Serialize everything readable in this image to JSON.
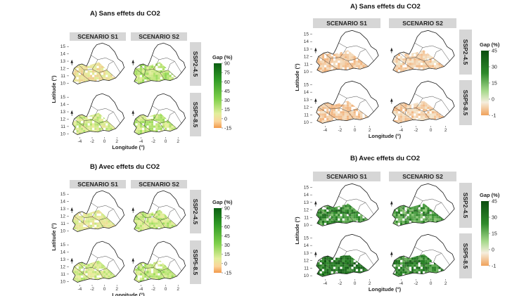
{
  "figures": [
    {
      "id": "left",
      "panels": [
        {
          "title": "A)   Sans effets du CO2",
          "scenarios": [
            "SCENARIO S1",
            "SCENARIO S2"
          ],
          "ssp": [
            "SSP2-4.5",
            "SSP5-8.5"
          ],
          "x_ticks": [
            "-4",
            "-2",
            "0",
            "2"
          ],
          "y_ticks": [
            "15",
            "14",
            "13",
            "12",
            "11",
            "10"
          ],
          "xlabel": "Longitude (°)",
          "ylabel": "Latitude (°)",
          "legend": {
            "title": "Gap (%)",
            "ticks": [
              "90",
              "75",
              "60",
              "45",
              "30",
              "15",
              "0",
              "-15"
            ]
          },
          "maps": [
            {
              "scenario": "SCENARIO S1",
              "ssp": "SSP2-4.5",
              "level": 0.2
            },
            {
              "scenario": "SCENARIO S2",
              "ssp": "SSP2-4.5",
              "level": 0.45
            },
            {
              "scenario": "SCENARIO S1",
              "ssp": "SSP5-8.5",
              "level": 0.35
            },
            {
              "scenario": "SCENARIO S2",
              "ssp": "SSP5-8.5",
              "level": 0.42
            }
          ]
        },
        {
          "title": "B)   Avec effets du CO2",
          "scenarios": [
            "SCENARIO S1",
            "SCENARIO S2"
          ],
          "ssp": [
            "SSP2-4.5",
            "SSP5-8.5"
          ],
          "x_ticks": [
            "-4",
            "-2",
            "0",
            "2"
          ],
          "y_ticks": [
            "15",
            "14",
            "13",
            "12",
            "11",
            "10"
          ],
          "xlabel": "Longitude (°)",
          "ylabel": "Latitude (°)",
          "legend": {
            "title": "Gap (%)",
            "ticks": [
              "90",
              "75",
              "60",
              "45",
              "30",
              "15",
              "0",
              "-15"
            ]
          },
          "maps": [
            {
              "scenario": "SCENARIO S1",
              "ssp": "SSP2-4.5",
              "level": 0.28
            },
            {
              "scenario": "SCENARIO S2",
              "ssp": "SSP2-4.5",
              "level": 0.4
            },
            {
              "scenario": "SCENARIO S1",
              "ssp": "SSP5-8.5",
              "level": 0.36
            },
            {
              "scenario": "SCENARIO S2",
              "ssp": "SSP5-8.5",
              "level": 0.44
            }
          ]
        }
      ]
    },
    {
      "id": "right",
      "panels": [
        {
          "title": "A)   Sans effets du CO2",
          "scenarios": [
            "SCENARIO S1",
            "SCENARIO S2"
          ],
          "ssp": [
            "SSP2-4.5",
            "SSP5-8.5"
          ],
          "x_ticks": [
            "-4",
            "-2",
            "0",
            "2"
          ],
          "y_ticks": [
            "15",
            "14",
            "13",
            "12",
            "11",
            "10"
          ],
          "xlabel": "Longitude (°)",
          "ylabel": "Latitude (°)",
          "legend": {
            "title": "Gap (%)",
            "ticks": [
              "45",
              "30",
              "15",
              "0",
              "-1"
            ]
          },
          "maps": [
            {
              "scenario": "SCENARIO S1",
              "ssp": "SSP2-4.5",
              "level": 0.08
            },
            {
              "scenario": "SCENARIO S2",
              "ssp": "SSP2-4.5",
              "level": 0.14
            },
            {
              "scenario": "SCENARIO S1",
              "ssp": "SSP5-8.5",
              "level": 0.1
            },
            {
              "scenario": "SCENARIO S2",
              "ssp": "SSP5-8.5",
              "level": 0.13
            }
          ]
        },
        {
          "title": "B)   Avec effets du CO2",
          "scenarios": [
            "SCENARIO S1",
            "SCENARIO S2"
          ],
          "ssp": [
            "SSP2-4.5",
            "SSP5-8.5"
          ],
          "x_ticks": [
            "-4",
            "-2",
            "0",
            "2"
          ],
          "y_ticks": [
            "15",
            "14",
            "13",
            "12",
            "11",
            "10"
          ],
          "xlabel": "Longitude (°)",
          "ylabel": "Latitude (°)",
          "legend": {
            "title": "Gap (%)",
            "ticks": [
              "45",
              "30",
              "15",
              "0",
              "-1"
            ]
          },
          "maps": [
            {
              "scenario": "SCENARIO S1",
              "ssp": "SSP2-4.5",
              "level": 0.72
            },
            {
              "scenario": "SCENARIO S2",
              "ssp": "SSP2-4.5",
              "level": 0.68
            },
            {
              "scenario": "SCENARIO S1",
              "ssp": "SSP5-8.5",
              "level": 0.82
            },
            {
              "scenario": "SCENARIO S2",
              "ssp": "SSP5-8.5",
              "level": 0.76
            }
          ]
        }
      ]
    }
  ]
}
